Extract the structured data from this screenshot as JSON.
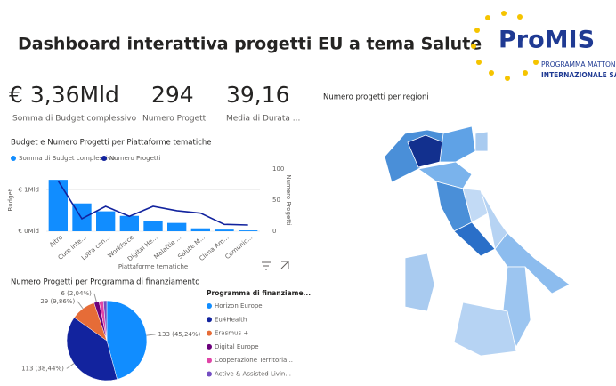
{
  "header": {
    "title": "Dashboard interattiva progetti EU a tema Salute",
    "logo": {
      "name": "ProMIS",
      "line1": "PROGRAMMA MATTONE",
      "line2": "INTERNAZIONALE SALUTE"
    }
  },
  "kpis": [
    {
      "value": "€ 3,36Mld",
      "label": "Somma di Budget complessivo"
    },
    {
      "value": "294",
      "label": "Numero Progetti"
    },
    {
      "value": "39,16",
      "label": "Media di Durata ..."
    }
  ],
  "map": {
    "title": "Numero progetti per regioni"
  },
  "chart_data": [
    {
      "type": "combo",
      "title": "Budget e Numero Progetti per Piattaforme tematiche",
      "x_label": "Piattaforme tematiche",
      "y_label": "Budget",
      "y2_label": "Numero Progetti",
      "categories": [
        "Altro",
        "Cure inte...",
        "Lotta con...",
        "Workforce",
        "Digital He...",
        "Malattie ...",
        "Salute M...",
        "Clima Am...",
        "Comunic..."
      ],
      "series": [
        {
          "name": "Somma di Budget complessivo",
          "kind": "bar",
          "color": "#118dff",
          "values": [
            1.24,
            0.67,
            0.48,
            0.37,
            0.24,
            0.2,
            0.07,
            0.04,
            0.02
          ]
        },
        {
          "name": "Numero Progetti",
          "kind": "line",
          "axis": "y2",
          "color": "#12239e",
          "values": [
            81,
            20,
            40,
            24,
            40,
            33,
            29,
            11,
            10
          ]
        }
      ],
      "ylim": [
        0,
        1.5
      ],
      "yticks": [
        {
          "value": 0,
          "label": "€ 0Mld"
        },
        {
          "value": 1,
          "label": "€ 1Mld"
        }
      ],
      "y2lim": [
        0,
        100
      ],
      "y2ticks": [
        0,
        50,
        100
      ],
      "legend": "top-left"
    },
    {
      "type": "pie",
      "title": "Numero Progetti per Programma di finanziamento",
      "legend_title": "Programma di finanziame...",
      "categories": [
        "Horizon Europe",
        "Eu4Health",
        "Erasmus +",
        "Digital Europe",
        "Cooperazione Territoria...",
        "Active & Assisted Livin..."
      ],
      "values": [
        133,
        113,
        29,
        6,
        5,
        4
      ],
      "value_labels": [
        "133 (45,24%)",
        "113 (38,44%)",
        "29 (9,86%)",
        "6 (2,04%)",
        null,
        null
      ],
      "colors": [
        "#118dff",
        "#12239e",
        "#e66c37",
        "#6b007b",
        "#e044a7",
        "#744ec2"
      ],
      "legend": "right"
    }
  ]
}
